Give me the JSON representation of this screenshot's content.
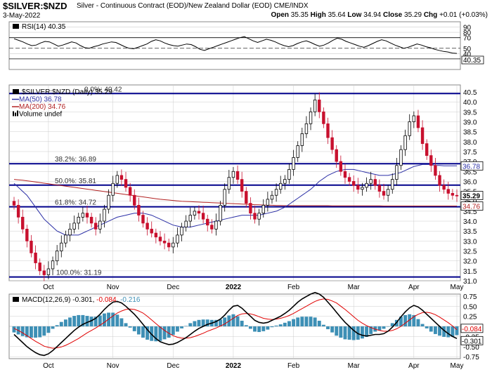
{
  "header": {
    "symbol": "$SILVER:$NZD",
    "description": "Silver - Continuous Contract (EOD)/New Zealand Dollar (EOD)  CME/INDX",
    "date": "3-May-2022",
    "ohlc": {
      "open_label": "Open",
      "open": "35.35",
      "high_label": "High",
      "high": "35.64",
      "low_label": "Low",
      "low": "34.94",
      "close_label": "Close",
      "close": "35.29",
      "chg_label": "Chg",
      "chg": "+0.01 (+0.03%)"
    }
  },
  "colors": {
    "up_candle": "#000000",
    "down_candle": "#c8102e",
    "fib_line": "#00008b",
    "ma50": "#2b2fa6",
    "ma200": "#b22222",
    "macd_line": "#000000",
    "signal_line": "#e00000",
    "histogram": "#3d8fb5",
    "grid": "#cccccc"
  },
  "chart_data": [
    {
      "type": "line",
      "panel": "RSI",
      "legend": "RSI(14) 40.35",
      "last_value": "40.35",
      "ylim": [
        10,
        100
      ],
      "yticks": [
        "90",
        "80",
        "70",
        "50",
        "40",
        "30"
      ],
      "reference_lines": [
        70,
        50,
        30
      ],
      "points": [
        68,
        65,
        62,
        58,
        55,
        56,
        60,
        63,
        62,
        58,
        54,
        56,
        59,
        62,
        60,
        55,
        51,
        50,
        53,
        55,
        58,
        60,
        62,
        61,
        57,
        53,
        50,
        49,
        52,
        55,
        58,
        63,
        66,
        64,
        60,
        57,
        55,
        54,
        56,
        58,
        57,
        53,
        48,
        46,
        49,
        52,
        55,
        58,
        61,
        64,
        67,
        70,
        72,
        68,
        64,
        61,
        64,
        67,
        65,
        62,
        58,
        55,
        53,
        55,
        59,
        62,
        64,
        61,
        57,
        54,
        56,
        60,
        65,
        69,
        67,
        63,
        60,
        57,
        54,
        52,
        55,
        59,
        63,
        66,
        64,
        60,
        56,
        53,
        50,
        52,
        55,
        58,
        56,
        53,
        51,
        48,
        46,
        44,
        43,
        41,
        40.35
      ]
    },
    {
      "type": "candlestick",
      "panel": "Price",
      "legend": [
        {
          "name": "$SILVER:$NZD (Daily) 35.29",
          "color": "#000000"
        },
        {
          "name": "MA(50) 36.78",
          "color": "#2b2fa6"
        },
        {
          "name": "MA(200) 34.76",
          "color": "#b22222"
        },
        {
          "name": "Volume undef",
          "color": "#000000"
        }
      ],
      "ylim": [
        31,
        40.5
      ],
      "yticks": [
        "40.5",
        "40.0",
        "39.5",
        "39.0",
        "38.5",
        "38.0",
        "37.5",
        "37.0",
        "36.5",
        "36.0",
        "35.5",
        "35.0",
        "34.5",
        "34.0",
        "33.5",
        "33.0",
        "32.5",
        "32.0",
        "31.5",
        "31.0"
      ],
      "xlabels": [
        "Oct",
        "Nov",
        "Dec",
        "2022",
        "Feb",
        "Mar",
        "Apr",
        "May"
      ],
      "last_close_label": "35.29",
      "ma50_label": "36.78",
      "ma200_label": "34.76",
      "fib_levels": [
        {
          "label": "0.0%: 40.42",
          "value": 40.42
        },
        {
          "label": "38.2%: 36.89",
          "value": 36.89
        },
        {
          "label": "50.0%: 35.81",
          "value": 35.81
        },
        {
          "label": "61.8%: 34.72",
          "value": 34.72
        },
        {
          "label": "100.0%: 31.19",
          "value": 31.19
        }
      ],
      "closes": [
        34.8,
        34.2,
        33.6,
        33.0,
        32.4,
        31.9,
        31.5,
        31.3,
        31.6,
        32.0,
        32.5,
        32.9,
        33.3,
        33.6,
        33.9,
        34.2,
        34.4,
        34.2,
        33.9,
        33.6,
        34.0,
        34.6,
        35.3,
        35.9,
        36.3,
        36.1,
        35.7,
        35.3,
        34.8,
        34.3,
        33.9,
        33.6,
        33.4,
        33.2,
        33.0,
        32.9,
        32.7,
        32.9,
        33.3,
        33.7,
        34.0,
        34.3,
        34.5,
        34.4,
        34.1,
        33.8,
        33.6,
        34.0,
        34.8,
        35.6,
        36.2,
        36.5,
        36.1,
        35.5,
        34.9,
        34.4,
        34.1,
        34.4,
        34.8,
        35.1,
        35.3,
        35.6,
        35.9,
        36.1,
        36.6,
        37.2,
        37.8,
        38.4,
        38.9,
        39.5,
        40.1,
        39.5,
        38.9,
        38.2,
        37.6,
        37.0,
        36.5,
        36.2,
        36.0,
        35.8,
        35.6,
        35.7,
        35.9,
        36.1,
        35.8,
        35.5,
        35.3,
        35.6,
        36.1,
        36.8,
        37.6,
        38.3,
        39.0,
        39.3,
        38.7,
        37.9,
        37.3,
        36.8,
        36.3,
        35.8,
        35.6,
        35.4,
        35.3,
        35.29
      ],
      "ma50": [
        35.9,
        35.7,
        35.5,
        35.3,
        35.0,
        34.7,
        34.4,
        34.1,
        33.9,
        33.7,
        33.5,
        33.4,
        33.3,
        33.3,
        33.3,
        33.3,
        33.4,
        33.5,
        33.6,
        33.7,
        33.8,
        33.9,
        34.0,
        34.1,
        34.2,
        34.25,
        34.3,
        34.35,
        34.4,
        34.4,
        34.4,
        34.35,
        34.3,
        34.2,
        34.1,
        34.0,
        33.9,
        33.8,
        33.75,
        33.7,
        33.7,
        33.7,
        33.75,
        33.8,
        33.85,
        33.9,
        33.95,
        34.0,
        34.05,
        34.1,
        34.15,
        34.2,
        34.25,
        34.3,
        34.3,
        34.3,
        34.3,
        34.3,
        34.35,
        34.4,
        34.45,
        34.5,
        34.6,
        34.7,
        34.85,
        35.0,
        35.15,
        35.3,
        35.45,
        35.6,
        35.8,
        36.0,
        36.15,
        36.3,
        36.4,
        36.5,
        36.55,
        36.6,
        36.6,
        36.6,
        36.55,
        36.5,
        36.45,
        36.4,
        36.35,
        36.3,
        36.3,
        36.3,
        36.35,
        36.4,
        36.45,
        36.55,
        36.65,
        36.75,
        36.8,
        36.85,
        36.85,
        36.85,
        36.8,
        36.8,
        36.78,
        36.78,
        36.78,
        36.78
      ],
      "ma200": [
        36.1,
        36.08,
        36.06,
        36.03,
        36.0,
        35.97,
        35.94,
        35.91,
        35.88,
        35.85,
        35.82,
        35.79,
        35.76,
        35.73,
        35.7,
        35.67,
        35.64,
        35.61,
        35.58,
        35.55,
        35.52,
        35.49,
        35.46,
        35.43,
        35.4,
        35.37,
        35.34,
        35.31,
        35.28,
        35.25,
        35.22,
        35.19,
        35.16,
        35.13,
        35.1,
        35.08,
        35.06,
        35.04,
        35.02,
        35.0,
        34.99,
        34.98,
        34.97,
        34.96,
        34.95,
        34.94,
        34.93,
        34.92,
        34.91,
        34.9,
        34.89,
        34.88,
        34.87,
        34.86,
        34.85,
        34.84,
        34.83,
        34.82,
        34.81,
        34.8,
        34.8,
        34.79,
        34.79,
        34.78,
        34.78,
        34.78,
        34.78,
        34.78,
        34.78,
        34.78,
        34.78,
        34.78,
        34.78,
        34.78,
        34.77,
        34.77,
        34.77,
        34.77,
        34.77,
        34.77,
        34.77,
        34.77,
        34.77,
        34.77,
        34.77,
        34.77,
        34.76,
        34.76,
        34.76,
        34.76,
        34.76,
        34.76,
        34.76,
        34.76,
        34.76,
        34.76,
        34.76,
        34.76,
        34.76,
        34.76,
        34.76,
        34.76,
        34.76,
        34.76
      ]
    },
    {
      "type": "line",
      "panel": "MACD",
      "legend": [
        {
          "name": "MACD(12,26,9)",
          "value": "-0.301",
          "color": "#000000"
        },
        {
          "name": "",
          "value": "-0.084",
          "color": "#e00000"
        },
        {
          "name": "",
          "value": "-0.216",
          "color": "#3d8fb5"
        }
      ],
      "ylim": [
        -0.8,
        0.8
      ],
      "yticks": [
        "0.75",
        "0.50",
        "0.25",
        "0.00",
        "-0.25",
        "-0.50",
        "-0.75"
      ],
      "value_labels": [
        "-0.084",
        "-0.301"
      ],
      "xlabels": [
        "Oct",
        "Nov",
        "Dec",
        "2022",
        "Feb",
        "Mar",
        "Apr",
        "May"
      ],
      "macd": [
        -0.2,
        -0.3,
        -0.4,
        -0.5,
        -0.58,
        -0.65,
        -0.7,
        -0.72,
        -0.68,
        -0.6,
        -0.5,
        -0.4,
        -0.3,
        -0.2,
        -0.1,
        -0.02,
        0.05,
        0.1,
        0.14,
        0.2,
        0.3,
        0.42,
        0.52,
        0.6,
        0.62,
        0.58,
        0.5,
        0.4,
        0.3,
        0.18,
        0.05,
        -0.08,
        -0.2,
        -0.3,
        -0.38,
        -0.42,
        -0.45,
        -0.44,
        -0.4,
        -0.34,
        -0.28,
        -0.2,
        -0.12,
        -0.05,
        0.0,
        0.05,
        0.08,
        0.12,
        0.18,
        0.28,
        0.4,
        0.5,
        0.52,
        0.45,
        0.35,
        0.25,
        0.15,
        0.1,
        0.08,
        0.1,
        0.15,
        0.2,
        0.25,
        0.32,
        0.4,
        0.5,
        0.6,
        0.68,
        0.74,
        0.8,
        0.84,
        0.8,
        0.72,
        0.6,
        0.48,
        0.35,
        0.22,
        0.1,
        0.0,
        -0.1,
        -0.18,
        -0.22,
        -0.24,
        -0.22,
        -0.2,
        -0.2,
        -0.18,
        -0.12,
        -0.02,
        0.1,
        0.24,
        0.36,
        0.46,
        0.52,
        0.48,
        0.4,
        0.3,
        0.2,
        0.1,
        0.0,
        -0.1,
        -0.18,
        -0.25,
        -0.301
      ],
      "signal": [
        -0.05,
        -0.1,
        -0.16,
        -0.23,
        -0.3,
        -0.37,
        -0.43,
        -0.49,
        -0.52,
        -0.54,
        -0.53,
        -0.51,
        -0.47,
        -0.42,
        -0.36,
        -0.3,
        -0.23,
        -0.16,
        -0.1,
        -0.04,
        0.03,
        0.1,
        0.18,
        0.26,
        0.33,
        0.38,
        0.42,
        0.43,
        0.42,
        0.38,
        0.33,
        0.25,
        0.16,
        0.07,
        -0.02,
        -0.1,
        -0.17,
        -0.23,
        -0.27,
        -0.29,
        -0.29,
        -0.28,
        -0.25,
        -0.21,
        -0.17,
        -0.12,
        -0.08,
        -0.04,
        0.01,
        0.06,
        0.13,
        0.2,
        0.27,
        0.31,
        0.32,
        0.31,
        0.28,
        0.24,
        0.2,
        0.18,
        0.17,
        0.18,
        0.2,
        0.23,
        0.27,
        0.32,
        0.38,
        0.44,
        0.5,
        0.56,
        0.62,
        0.66,
        0.68,
        0.67,
        0.63,
        0.58,
        0.5,
        0.42,
        0.33,
        0.24,
        0.15,
        0.08,
        0.02,
        -0.03,
        -0.07,
        -0.1,
        -0.12,
        -0.12,
        -0.1,
        -0.06,
        0.0,
        0.08,
        0.16,
        0.24,
        0.3,
        0.34,
        0.35,
        0.33,
        0.29,
        0.23,
        0.16,
        0.09,
        0.01,
        -0.084
      ]
    }
  ]
}
